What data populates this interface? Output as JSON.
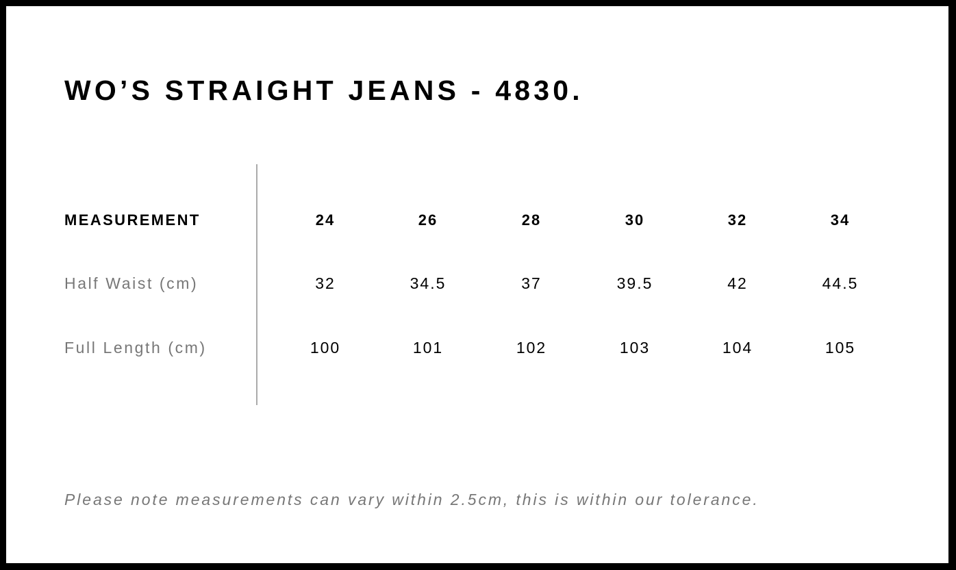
{
  "title": "WO’S STRAIGHT JEANS - 4830.",
  "table": {
    "header_label": "MEASUREMENT",
    "sizes": [
      "24",
      "26",
      "28",
      "30",
      "32",
      "34"
    ],
    "rows": [
      {
        "label": "Half Waist (cm)",
        "values": [
          "32",
          "34.5",
          "37",
          "39.5",
          "42",
          "44.5"
        ]
      },
      {
        "label": "Full Length (cm)",
        "values": [
          "100",
          "101",
          "102",
          "103",
          "104",
          "105"
        ]
      }
    ]
  },
  "note": "Please note measurements can vary within 2.5cm, this is within our tolerance.",
  "colors": {
    "border": "#000000",
    "label_gray": "#777777",
    "divider": "#aaaaaa"
  }
}
